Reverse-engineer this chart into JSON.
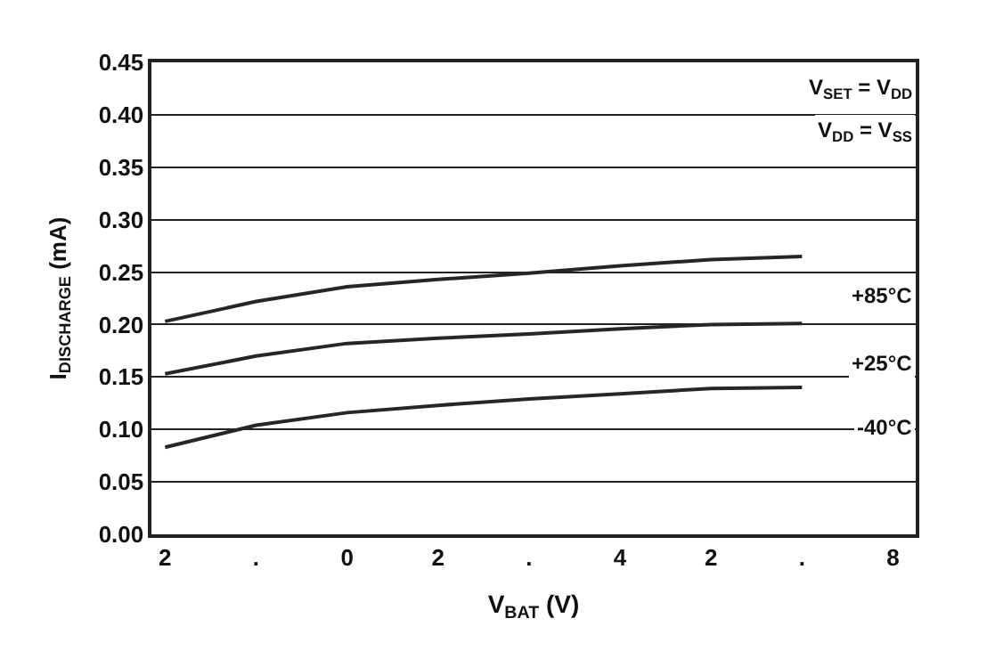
{
  "chart_data": {
    "type": "line",
    "xlabel": "V$_{BAT}$ (V)",
    "ylabel": "I$_{DISCHARGE}$ (mA)",
    "annotations": [
      "V$_{SET}$ = V$_{DD}$",
      "V$_{DD}$ = V$_{SS}$"
    ],
    "categories": [
      "2",
      ".",
      "0",
      "2",
      ".",
      "4",
      "2",
      ".",
      "8"
    ],
    "ylim": [
      0,
      0.45
    ],
    "yticks": [
      {
        "value": 0,
        "label": "0.00"
      },
      {
        "value": 0.05,
        "label": "0.05"
      },
      {
        "value": 0.1,
        "label": "0.10"
      },
      {
        "value": 0.15,
        "label": "0.15"
      },
      {
        "value": 0.2,
        "label": "0.20"
      },
      {
        "value": 0.25,
        "label": "0.25"
      },
      {
        "value": 0.3,
        "label": "0.30"
      },
      {
        "value": 0.35,
        "label": "0.35"
      },
      {
        "value": 0.4,
        "label": "0.40"
      },
      {
        "value": 0.45,
        "label": "0.45"
      }
    ],
    "grid": "y",
    "legend": false,
    "marker": "none",
    "line_style": "solid",
    "series": [
      {
        "name": "+85°C",
        "color": "#262626",
        "values": [
          0.203,
          0.222,
          0.236,
          0.243,
          0.249,
          0.256,
          0.262,
          0.265,
          null
        ]
      },
      {
        "name": "+25°C",
        "color": "#262626",
        "values": [
          0.153,
          0.17,
          0.182,
          0.187,
          0.191,
          0.196,
          0.2,
          0.201,
          null
        ]
      },
      {
        "name": "-40°C",
        "color": "#262626",
        "values": [
          0.083,
          0.104,
          0.116,
          0.123,
          0.129,
          0.134,
          0.139,
          0.14,
          null
        ]
      }
    ]
  }
}
